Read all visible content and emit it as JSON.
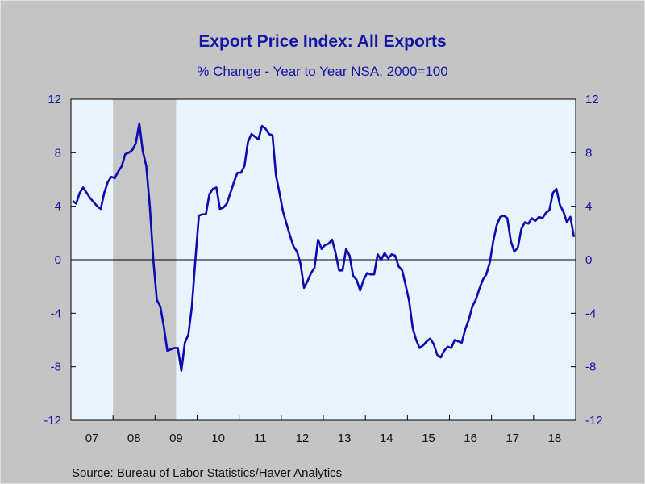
{
  "title": "Export Price Index: All Exports",
  "subtitle": "% Change - Year to Year    NSA, 2000=100",
  "source": "Source:  Bureau of Labor Statistics/Haver Analytics",
  "chart_data": {
    "type": "line",
    "title": "Export Price Index: All Exports",
    "subtitle": "% Change - Year to Year    NSA, 2000=100",
    "ylim": [
      -12,
      12
    ],
    "y_ticks": [
      12,
      8,
      4,
      0,
      -4,
      -8,
      -12
    ],
    "y_tick_labels": [
      "12",
      "8",
      "4",
      "0",
      "-4",
      "-8",
      "-12"
    ],
    "x_tick_labels": [
      "07",
      "08",
      "09",
      "10",
      "11",
      "12",
      "13",
      "14",
      "15",
      "16",
      "17",
      "18"
    ],
    "x_range": [
      "2007-01",
      "2018-12"
    ],
    "zero_line": true,
    "grid": false,
    "line_color": "#0b0bb0",
    "background": "#e8f4ff",
    "shaded_periods": [
      {
        "start": "2008-01",
        "end": "2009-06",
        "color": "#c7c7c7"
      }
    ],
    "series": [
      {
        "x_start": "2007-01",
        "values": [
          4.4,
          4.2,
          5.0,
          5.4,
          5.0,
          4.6,
          4.3,
          4.0,
          3.8,
          5.0,
          5.8,
          6.2,
          6.1,
          6.6,
          7.0,
          7.9,
          8.0,
          8.2,
          8.7,
          10.2,
          8.1,
          7.0,
          4.0,
          0.0,
          -3.0,
          -3.5,
          -5.0,
          -6.8,
          -6.7,
          -6.6,
          -6.6,
          -8.3,
          -6.2,
          -5.6,
          -3.5,
          0.0,
          3.3,
          3.4,
          3.4,
          4.9,
          5.3,
          5.4,
          3.8,
          3.9,
          4.2,
          5.0,
          5.8,
          6.5,
          6.5,
          7.0,
          8.8,
          9.4,
          9.2,
          9.0,
          10.0,
          9.8,
          9.4,
          9.3,
          6.3,
          5.0,
          3.6,
          2.7,
          1.8,
          1.0,
          0.6,
          -0.3,
          -2.1,
          -1.6,
          -1.0,
          -0.6,
          1.5,
          0.8,
          1.1,
          1.2,
          1.5,
          0.5,
          -0.8,
          -0.8,
          0.8,
          0.3,
          -1.2,
          -1.5,
          -2.3,
          -1.5,
          -1.0,
          -1.1,
          -1.1,
          0.4,
          0.0,
          0.5,
          0.1,
          0.4,
          0.3,
          -0.5,
          -0.8,
          -1.9,
          -3.1,
          -5.1,
          -6.0,
          -6.6,
          -6.4,
          -6.1,
          -5.9,
          -6.3,
          -7.1,
          -7.3,
          -6.8,
          -6.5,
          -6.6,
          -6.0,
          -6.1,
          -6.2,
          -5.2,
          -4.5,
          -3.5,
          -3.0,
          -2.2,
          -1.5,
          -1.1,
          -0.2,
          1.4,
          2.6,
          3.2,
          3.3,
          3.1,
          1.4,
          0.6,
          0.9,
          2.3,
          2.8,
          2.7,
          3.1,
          2.9,
          3.2,
          3.1,
          3.5,
          3.7,
          5.0,
          5.3,
          4.1,
          3.6,
          2.8,
          3.2,
          1.7
        ]
      }
    ]
  }
}
